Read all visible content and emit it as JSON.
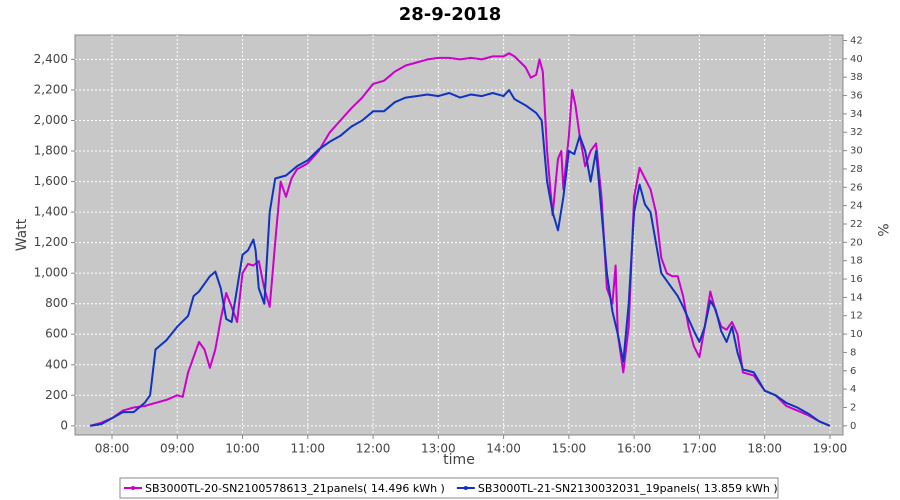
{
  "chart_data": {
    "type": "line",
    "title": "28-9-2018",
    "xlabel": "time",
    "ylabel": "Watt",
    "y2label": "%",
    "xlim": [
      "07:26",
      "19:12"
    ],
    "xticks": [
      "08:00",
      "09:00",
      "10:00",
      "11:00",
      "12:00",
      "13:00",
      "14:00",
      "15:00",
      "16:00",
      "17:00",
      "18:00",
      "19:00"
    ],
    "ylim": [
      -60,
      2560
    ],
    "yticks": [
      0,
      200,
      400,
      600,
      800,
      {
        "value": 1000,
        "label": "1,000"
      },
      {
        "value": 1200,
        "label": "1,200"
      },
      {
        "value": 1400,
        "label": "1,400"
      },
      {
        "value": 1600,
        "label": "1,600"
      },
      {
        "value": 1800,
        "label": "1,800"
      },
      {
        "value": 2000,
        "label": "2,000"
      },
      {
        "value": 2200,
        "label": "2,200"
      },
      {
        "value": 2400,
        "label": "2,400"
      }
    ],
    "y2lim": [
      -1,
      42.6
    ],
    "y2ticks": [
      0,
      2,
      4,
      6,
      8,
      10,
      12,
      14,
      16,
      18,
      20,
      22,
      24,
      26,
      28,
      30,
      32,
      34,
      36,
      38,
      40,
      42
    ],
    "grid": true,
    "legend": "bottom",
    "series": [
      {
        "name": "SB3000TL-20-SN2100578613_21panels( 14.496 kWh )",
        "color": "#cc00cc",
        "x": [
          "07:40",
          "07:50",
          "08:00",
          "08:10",
          "08:20",
          "08:30",
          "08:40",
          "08:50",
          "09:00",
          "09:05",
          "09:10",
          "09:20",
          "09:25",
          "09:30",
          "09:35",
          "09:40",
          "09:45",
          "09:50",
          "09:55",
          "10:00",
          "10:05",
          "10:10",
          "10:15",
          "10:20",
          "10:25",
          "10:30",
          "10:35",
          "10:40",
          "10:45",
          "10:50",
          "11:00",
          "11:10",
          "11:20",
          "11:30",
          "11:40",
          "11:50",
          "12:00",
          "12:10",
          "12:20",
          "12:30",
          "12:40",
          "12:50",
          "13:00",
          "13:10",
          "13:20",
          "13:30",
          "13:40",
          "13:50",
          "14:00",
          "14:05",
          "14:10",
          "14:20",
          "14:25",
          "14:30",
          "14:33",
          "14:36",
          "14:40",
          "14:45",
          "14:50",
          "14:53",
          "14:55",
          "15:00",
          "15:03",
          "15:06",
          "15:10",
          "15:15",
          "15:20",
          "15:25",
          "15:30",
          "15:35",
          "15:40",
          "15:43",
          "15:45",
          "15:50",
          "15:55",
          "16:00",
          "16:05",
          "16:10",
          "16:15",
          "16:20",
          "16:25",
          "16:30",
          "16:35",
          "16:40",
          "16:45",
          "16:50",
          "16:55",
          "17:00",
          "17:05",
          "17:10",
          "17:15",
          "17:20",
          "17:25",
          "17:30",
          "17:35",
          "17:40",
          "17:50",
          "18:00",
          "18:10",
          "18:20",
          "18:30",
          "18:40",
          "18:50",
          "19:00"
        ],
        "values": [
          0,
          20,
          50,
          100,
          120,
          130,
          150,
          170,
          200,
          190,
          350,
          550,
          500,
          380,
          500,
          700,
          870,
          780,
          680,
          1000,
          1060,
          1050,
          1080,
          900,
          780,
          1200,
          1600,
          1500,
          1620,
          1680,
          1720,
          1800,
          1920,
          2000,
          2080,
          2150,
          2240,
          2260,
          2320,
          2360,
          2380,
          2400,
          2410,
          2410,
          2400,
          2410,
          2400,
          2420,
          2420,
          2440,
          2420,
          2350,
          2280,
          2300,
          2400,
          2320,
          1800,
          1380,
          1750,
          1800,
          1550,
          1900,
          2200,
          2100,
          1900,
          1700,
          1800,
          1850,
          1500,
          900,
          800,
          1050,
          600,
          350,
          650,
          1500,
          1690,
          1620,
          1550,
          1400,
          1100,
          1000,
          980,
          980,
          850,
          650,
          520,
          450,
          650,
          880,
          750,
          650,
          630,
          680,
          600,
          350,
          330,
          230,
          200,
          130,
          100,
          70,
          30,
          0
        ]
      },
      {
        "name": "SB3000TL-21-SN2130032031_19panels( 13.859 kWh )",
        "color": "#1033c0",
        "x": [
          "07:40",
          "07:50",
          "08:00",
          "08:10",
          "08:20",
          "08:30",
          "08:35",
          "08:40",
          "08:45",
          "08:50",
          "09:00",
          "09:10",
          "09:15",
          "09:20",
          "09:30",
          "09:35",
          "09:40",
          "09:45",
          "09:50",
          "09:55",
          "10:00",
          "10:05",
          "10:10",
          "10:12",
          "10:15",
          "10:20",
          "10:25",
          "10:30",
          "10:40",
          "10:50",
          "11:00",
          "11:10",
          "11:20",
          "11:30",
          "11:40",
          "11:50",
          "12:00",
          "12:10",
          "12:20",
          "12:30",
          "12:40",
          "12:50",
          "13:00",
          "13:10",
          "13:20",
          "13:30",
          "13:40",
          "13:50",
          "14:00",
          "14:05",
          "14:10",
          "14:20",
          "14:30",
          "14:35",
          "14:40",
          "14:45",
          "14:50",
          "14:55",
          "15:00",
          "15:05",
          "15:10",
          "15:15",
          "15:20",
          "15:25",
          "15:30",
          "15:35",
          "15:40",
          "15:45",
          "15:50",
          "15:55",
          "16:00",
          "16:05",
          "16:10",
          "16:15",
          "16:20",
          "16:25",
          "16:30",
          "16:35",
          "16:40",
          "16:45",
          "16:50",
          "16:55",
          "17:00",
          "17:05",
          "17:10",
          "17:15",
          "17:20",
          "17:25",
          "17:30",
          "17:35",
          "17:40",
          "17:50",
          "18:00",
          "18:10",
          "18:20",
          "18:30",
          "18:40",
          "18:50",
          "19:00"
        ],
        "values": [
          0,
          10,
          50,
          90,
          90,
          150,
          200,
          500,
          530,
          560,
          650,
          720,
          850,
          880,
          980,
          1010,
          900,
          700,
          680,
          900,
          1120,
          1150,
          1220,
          1150,
          900,
          800,
          1400,
          1620,
          1640,
          1700,
          1740,
          1810,
          1860,
          1900,
          1960,
          2000,
          2060,
          2060,
          2120,
          2150,
          2160,
          2170,
          2160,
          2180,
          2150,
          2170,
          2160,
          2180,
          2160,
          2200,
          2140,
          2100,
          2050,
          2000,
          1600,
          1400,
          1280,
          1500,
          1800,
          1780,
          1900,
          1800,
          1600,
          1800,
          1400,
          1000,
          750,
          600,
          420,
          800,
          1400,
          1580,
          1450,
          1400,
          1200,
          1000,
          950,
          900,
          850,
          780,
          700,
          620,
          550,
          650,
          820,
          760,
          620,
          550,
          650,
          480,
          370,
          350,
          230,
          200,
          150,
          120,
          80,
          30,
          0
        ]
      }
    ]
  }
}
